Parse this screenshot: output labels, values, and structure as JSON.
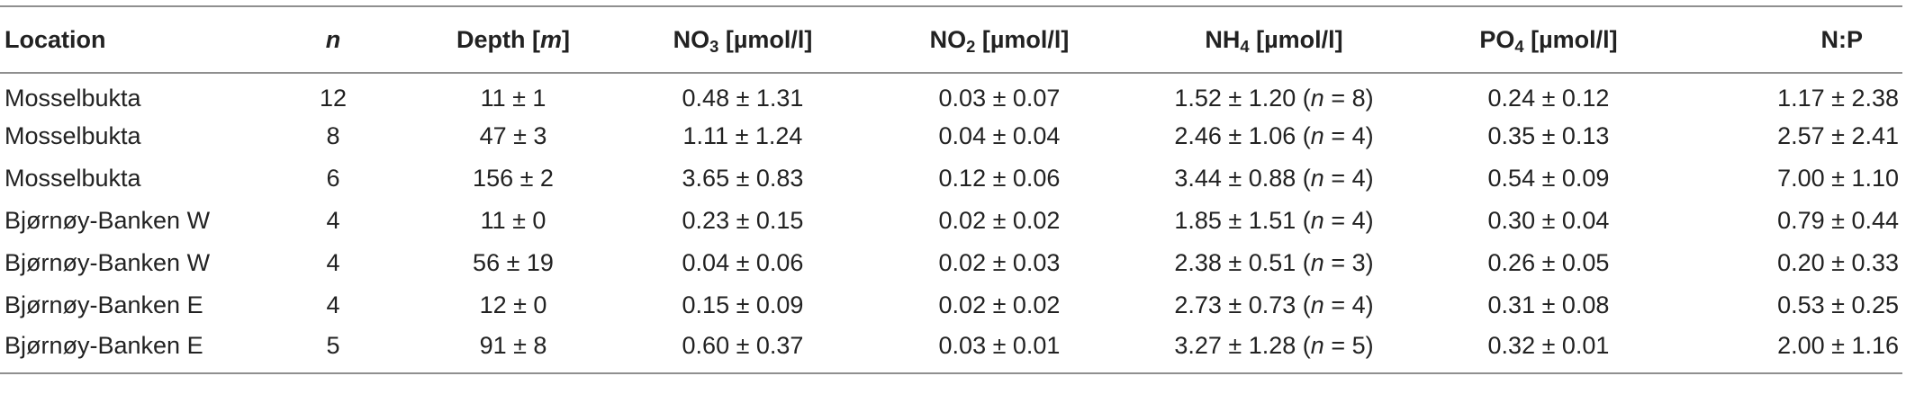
{
  "table": {
    "headers": {
      "location": "Location",
      "n": "n",
      "depth_label": "Depth [",
      "depth_unit": "m",
      "depth_close": "]",
      "no3_base": "NO",
      "no3_sub": "3",
      "no3_unit": " [µmol/l]",
      "no2_base": "NO",
      "no2_sub": "2",
      "no2_unit": " [µmol/l]",
      "nh4_base": "NH",
      "nh4_sub": "4",
      "nh4_unit": " [µmol/l]",
      "po4_base": "PO",
      "po4_sub": "4",
      "po4_unit": " [µmol/l]",
      "np": "N:P"
    },
    "rows": [
      {
        "location": "Mosselbukta",
        "n": "12",
        "depth": "11 ± 1",
        "no3": "0.48 ± 1.31",
        "no2": "0.03 ± 0.07",
        "nh4": "1.52 ± 1.20 (",
        "nh4_n": "n",
        "nh4_tail": " = 8)",
        "po4": "0.24 ± 0.12",
        "np": "1.17 ± 2.38"
      },
      {
        "location": "Mosselbukta",
        "n": "8",
        "depth": "47 ± 3",
        "no3": "1.11 ± 1.24",
        "no2": "0.04 ± 0.04",
        "nh4": "2.46 ± 1.06 (",
        "nh4_n": "n",
        "nh4_tail": " = 4)",
        "po4": "0.35 ± 0.13",
        "np": "2.57 ± 2.41"
      },
      {
        "location": "Mosselbukta",
        "n": "6",
        "depth": "156 ± 2",
        "no3": "3.65 ± 0.83",
        "no2": "0.12 ± 0.06",
        "nh4": "3.44 ± 0.88 (",
        "nh4_n": "n",
        "nh4_tail": " = 4)",
        "po4": "0.54 ± 0.09",
        "np": "7.00 ± 1.10"
      },
      {
        "location": "Bjørnøy-Banken W",
        "n": "4",
        "depth": "11 ± 0",
        "no3": "0.23 ± 0.15",
        "no2": "0.02 ± 0.02",
        "nh4": "1.85 ± 1.51 (",
        "nh4_n": "n",
        "nh4_tail": " = 4)",
        "po4": "0.30 ± 0.04",
        "np": "0.79 ± 0.44"
      },
      {
        "location": "Bjørnøy-Banken W",
        "n": "4",
        "depth": "56 ± 19",
        "no3": "0.04 ± 0.06",
        "no2": "0.02 ± 0.03",
        "nh4": "2.38 ± 0.51 (",
        "nh4_n": "n",
        "nh4_tail": " = 3)",
        "po4": "0.26 ± 0.05",
        "np": "0.20 ± 0.33"
      },
      {
        "location": "Bjørnøy-Banken E",
        "n": "4",
        "depth": "12 ± 0",
        "no3": "0.15 ± 0.09",
        "no2": "0.02 ± 0.02",
        "nh4": "2.73 ± 0.73 (",
        "nh4_n": "n",
        "nh4_tail": " = 4)",
        "po4": "0.31 ± 0.08",
        "np": "0.53 ± 0.25"
      },
      {
        "location": "Bjørnøy-Banken E",
        "n": "5",
        "depth": "91 ± 8",
        "no3": "0.60 ± 0.37",
        "no2": "0.03 ± 0.01",
        "nh4": "3.27 ± 1.28 (",
        "nh4_n": "n",
        "nh4_tail": " = 5)",
        "po4": "0.32 ± 0.01",
        "np": "2.00 ± 1.16"
      }
    ]
  }
}
